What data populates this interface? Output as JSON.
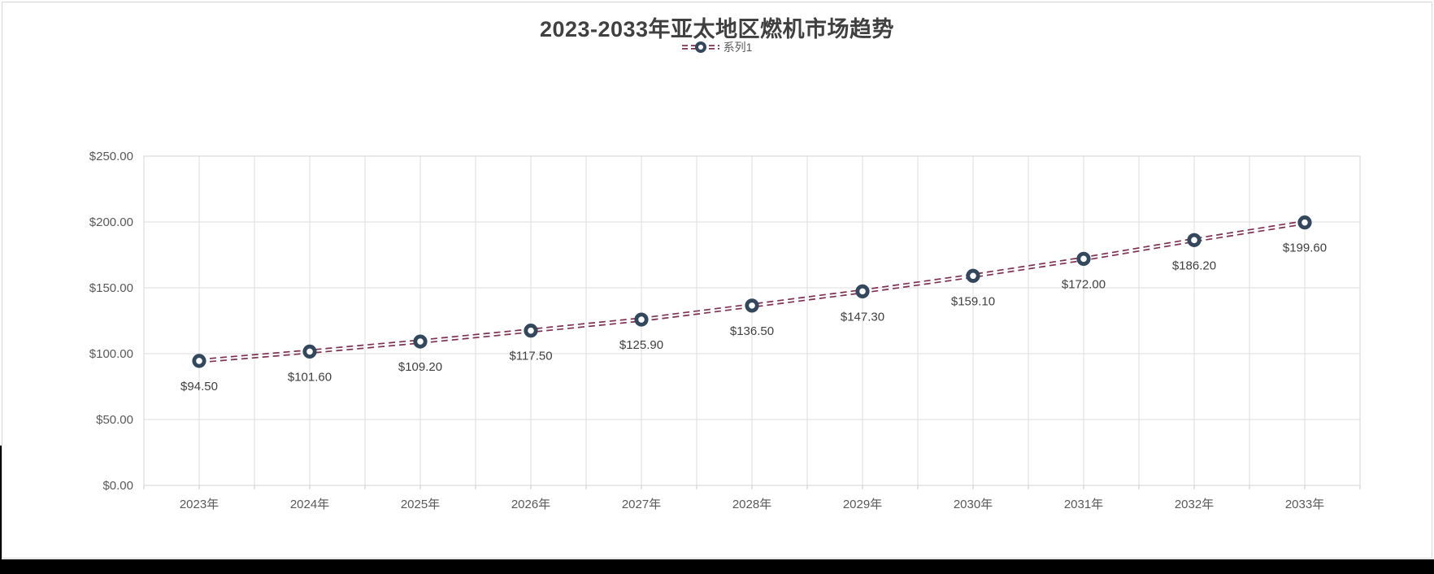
{
  "title": "2023-2033年亚太地区燃机市场趋势",
  "legend": {
    "series_label": "系列1"
  },
  "colors": {
    "line": "#7E3154",
    "marker_stroke": "#33485C",
    "marker_fill": "#FFFFFF",
    "grid": "#DCDCDC",
    "plot_border": "#D4D4D4",
    "tick": "#C8C8C8",
    "axis_text": "#595959",
    "data_label_text": "#404040",
    "title_text": "#404040",
    "bottom_bar": "#000000"
  },
  "chart_data": {
    "type": "line",
    "title": "2023-2033年亚太地区燃机市场趋势",
    "categories": [
      "2023年",
      "2024年",
      "2025年",
      "2026年",
      "2027年",
      "2028年",
      "2029年",
      "2030年",
      "2031年",
      "2032年",
      "2033年"
    ],
    "series": [
      {
        "name": "系列1",
        "values": [
          94.5,
          101.6,
          109.2,
          117.5,
          125.9,
          136.5,
          147.3,
          159.1,
          172.0,
          186.2,
          199.6
        ]
      }
    ],
    "point_labels": [
      "$94.50",
      "$101.60",
      "$109.20",
      "$117.50",
      "$125.90",
      "$136.50",
      "$147.30",
      "$159.10",
      "$172.00",
      "$186.20",
      "$199.60"
    ],
    "y_tick_labels": [
      "$0.00",
      "$50.00",
      "$100.00",
      "$150.00",
      "$200.00",
      "$250.00"
    ],
    "ylim": [
      0,
      250
    ],
    "y_tick_step": 50,
    "xlabel": "",
    "ylabel": "",
    "grid": true,
    "legend_position": "top",
    "line_style": "double-dashed",
    "marker": "open-circle"
  }
}
